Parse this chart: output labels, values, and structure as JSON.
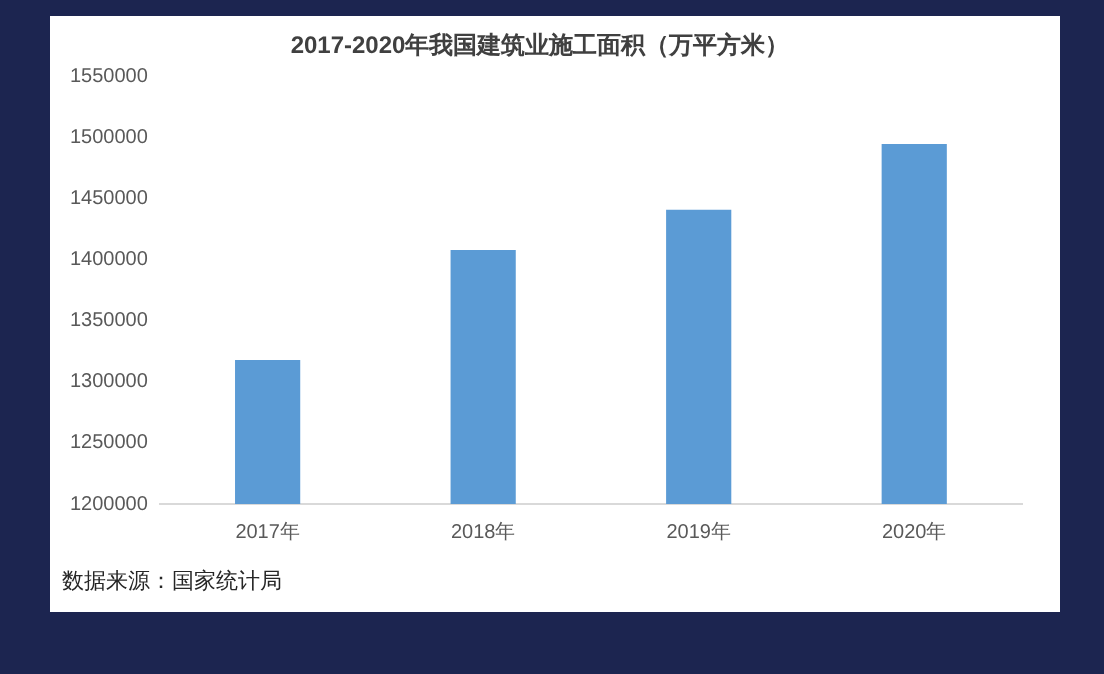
{
  "chart_data": {
    "type": "bar",
    "title": "2017-2020年我国建筑业施工面积（万平方米）",
    "categories": [
      "2017年",
      "2018年",
      "2019年",
      "2020年"
    ],
    "values": [
      1318000,
      1408000,
      1441000,
      1495000
    ],
    "color": "#5b9bd5",
    "ylim": [
      1200000,
      1550000
    ],
    "yticks": [
      1200000,
      1250000,
      1300000,
      1350000,
      1400000,
      1450000,
      1500000,
      1550000
    ],
    "grid": false,
    "legend": false,
    "annotations": [
      "数据来源：国家统计局"
    ]
  }
}
